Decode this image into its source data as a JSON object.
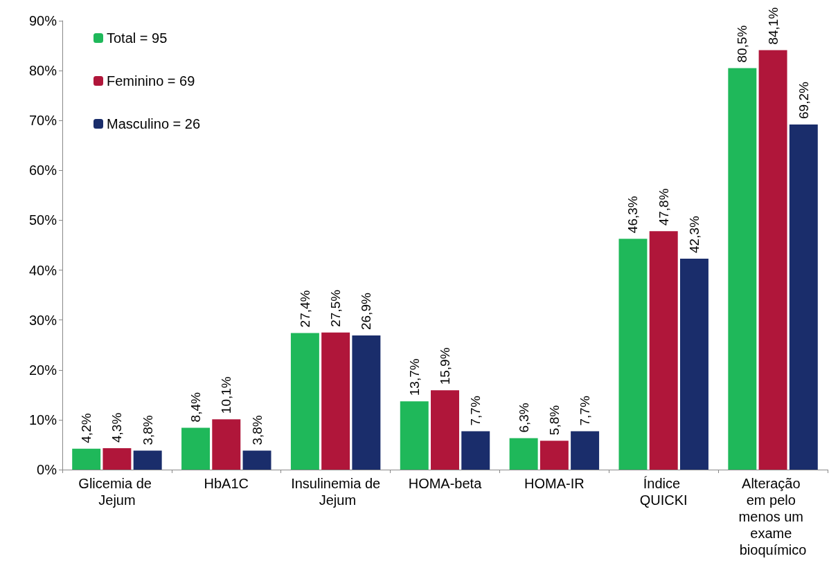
{
  "chart_data": {
    "type": "bar",
    "categories": [
      "Glicemia de Jejum",
      "HbA1C",
      "Insulinemia de Jejum",
      "HOMA-beta",
      "HOMA-IR",
      "Índice QUICKI",
      "Alteração em pelo menos um exame bioquímico"
    ],
    "series": [
      {
        "name": "Total = 95",
        "color": "#1fb85a",
        "values": [
          4.2,
          8.4,
          27.4,
          13.7,
          6.3,
          46.3,
          80.5
        ],
        "value_labels": [
          "4,2%",
          "8,4%",
          "27,4%",
          "13,7%",
          "6,3%",
          "46,3%",
          "80,5%"
        ]
      },
      {
        "name": "Feminino = 69",
        "color": "#b0163a",
        "values": [
          4.3,
          10.1,
          27.5,
          15.9,
          5.8,
          47.8,
          84.1
        ],
        "value_labels": [
          "4,3%",
          "10,1%",
          "27,5%",
          "15,9%",
          "5,8%",
          "47,8%",
          "84,1%"
        ]
      },
      {
        "name": "Masculino = 26",
        "color": "#1a2d6b",
        "values": [
          3.8,
          3.8,
          26.9,
          7.7,
          7.7,
          42.3,
          69.2
        ],
        "value_labels": [
          "3,8%",
          "3,8%",
          "26,9%",
          "7,7%",
          "7,7%",
          "42,3%",
          "69,2%"
        ]
      }
    ],
    "ylim": [
      0,
      90
    ],
    "yticks": [
      {
        "value": 0,
        "label": "0%"
      },
      {
        "value": 10,
        "label": "10%"
      },
      {
        "value": 20,
        "label": "20%"
      },
      {
        "value": 30,
        "label": "30%"
      },
      {
        "value": 40,
        "label": "40%"
      },
      {
        "value": 50,
        "label": "50%"
      },
      {
        "value": 60,
        "label": "60%"
      },
      {
        "value": 70,
        "label": "70%"
      },
      {
        "value": 80,
        "label": "80%"
      },
      {
        "value": 90,
        "label": "90%"
      }
    ],
    "grid": false,
    "legend": "top left"
  }
}
